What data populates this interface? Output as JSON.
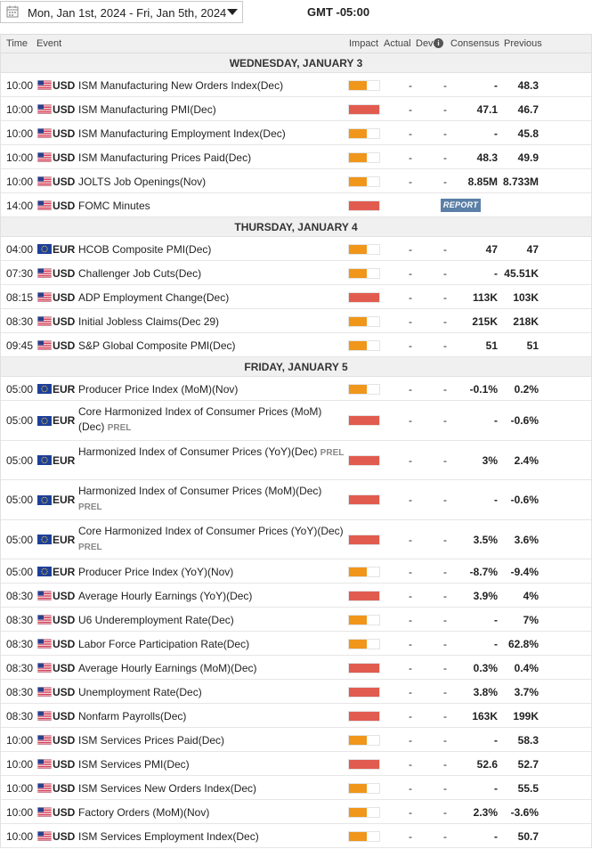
{
  "header": {
    "date_range": "Mon, Jan 1st, 2024 -  Fri, Jan 5th, 2024",
    "timezone": "GMT -05:00"
  },
  "columns": {
    "time": "Time",
    "event": "Event",
    "impact": "Impact",
    "actual": "Actual",
    "dev": "Dev",
    "consensus": "Consensus",
    "previous": "Previous"
  },
  "colors": {
    "impact_medium": "#ef961b",
    "impact_high": "#e15c4f",
    "report_button": "#5b7fa6"
  },
  "days": [
    {
      "label": "WEDNESDAY, JANUARY 3",
      "events": [
        {
          "time": "10:00",
          "currency": "USD",
          "flag": "us-flag-icon",
          "name": "ISM Manufacturing New Orders Index(Dec)",
          "prel": "",
          "impact": "medium",
          "actual": "-",
          "dev": "-",
          "consensus": "-",
          "previous": "48.3"
        },
        {
          "time": "10:00",
          "currency": "USD",
          "flag": "us-flag-icon",
          "name": "ISM Manufacturing PMI(Dec)",
          "prel": "",
          "impact": "high",
          "actual": "-",
          "dev": "-",
          "consensus": "47.1",
          "previous": "46.7"
        },
        {
          "time": "10:00",
          "currency": "USD",
          "flag": "us-flag-icon",
          "name": "ISM Manufacturing Employment Index(Dec)",
          "prel": "",
          "impact": "medium",
          "actual": "-",
          "dev": "-",
          "consensus": "-",
          "previous": "45.8"
        },
        {
          "time": "10:00",
          "currency": "USD",
          "flag": "us-flag-icon",
          "name": "ISM Manufacturing Prices Paid(Dec)",
          "prel": "",
          "impact": "medium",
          "actual": "-",
          "dev": "-",
          "consensus": "48.3",
          "previous": "49.9"
        },
        {
          "time": "10:00",
          "currency": "USD",
          "flag": "us-flag-icon",
          "name": "JOLTS Job Openings(Nov)",
          "prel": "",
          "impact": "medium",
          "actual": "-",
          "dev": "-",
          "consensus": "8.85M",
          "previous": "8.733M"
        },
        {
          "time": "14:00",
          "currency": "USD",
          "flag": "us-flag-icon",
          "name": "FOMC Minutes",
          "prel": "",
          "impact": "high",
          "actual": "",
          "dev": "",
          "consensus": "",
          "previous": "",
          "report": "REPORT"
        }
      ]
    },
    {
      "label": "THURSDAY, JANUARY 4",
      "events": [
        {
          "time": "04:00",
          "currency": "EUR",
          "flag": "eu-flag-icon",
          "name": "HCOB Composite PMI(Dec)",
          "prel": "",
          "impact": "medium",
          "actual": "-",
          "dev": "-",
          "consensus": "47",
          "previous": "47"
        },
        {
          "time": "07:30",
          "currency": "USD",
          "flag": "us-flag-icon",
          "name": "Challenger Job Cuts(Dec)",
          "prel": "",
          "impact": "medium",
          "actual": "-",
          "dev": "-",
          "consensus": "-",
          "previous": "45.51K"
        },
        {
          "time": "08:15",
          "currency": "USD",
          "flag": "us-flag-icon",
          "name": "ADP Employment Change(Dec)",
          "prel": "",
          "impact": "high",
          "actual": "-",
          "dev": "-",
          "consensus": "113K",
          "previous": "103K"
        },
        {
          "time": "08:30",
          "currency": "USD",
          "flag": "us-flag-icon",
          "name": "Initial Jobless Claims(Dec 29)",
          "prel": "",
          "impact": "medium",
          "actual": "-",
          "dev": "-",
          "consensus": "215K",
          "previous": "218K"
        },
        {
          "time": "09:45",
          "currency": "USD",
          "flag": "us-flag-icon",
          "name": "S&P Global Composite PMI(Dec)",
          "prel": "",
          "impact": "medium",
          "actual": "-",
          "dev": "-",
          "consensus": "51",
          "previous": "51"
        }
      ]
    },
    {
      "label": "FRIDAY, JANUARY 5",
      "events": [
        {
          "time": "05:00",
          "currency": "EUR",
          "flag": "eu-flag-icon",
          "name": "Producer Price Index (MoM)(Nov)",
          "prel": "",
          "impact": "medium",
          "actual": "-",
          "dev": "-",
          "consensus": "-0.1%",
          "previous": "0.2%"
        },
        {
          "time": "05:00",
          "currency": "EUR",
          "flag": "eu-flag-icon",
          "name": "Core Harmonized Index of Consumer Prices (MoM)(Dec)",
          "prel": "PREL",
          "impact": "high",
          "actual": "-",
          "dev": "-",
          "consensus": "-",
          "previous": "-0.6%"
        },
        {
          "time": "05:00",
          "currency": "EUR",
          "flag": "eu-flag-icon",
          "name": "Harmonized Index of Consumer Prices (YoY)(Dec)",
          "prel": "PREL",
          "impact": "high",
          "actual": "-",
          "dev": "-",
          "consensus": "3%",
          "previous": "2.4%"
        },
        {
          "time": "05:00",
          "currency": "EUR",
          "flag": "eu-flag-icon",
          "name": "Harmonized Index of Consumer Prices (MoM)(Dec)",
          "prel": "PREL",
          "impact": "high",
          "actual": "-",
          "dev": "-",
          "consensus": "-",
          "previous": "-0.6%"
        },
        {
          "time": "05:00",
          "currency": "EUR",
          "flag": "eu-flag-icon",
          "name": "Core Harmonized Index of Consumer Prices (YoY)(Dec)",
          "prel": "PREL",
          "impact": "high",
          "actual": "-",
          "dev": "-",
          "consensus": "3.5%",
          "previous": "3.6%"
        },
        {
          "time": "05:00",
          "currency": "EUR",
          "flag": "eu-flag-icon",
          "name": "Producer Price Index (YoY)(Nov)",
          "prel": "",
          "impact": "medium",
          "actual": "-",
          "dev": "-",
          "consensus": "-8.7%",
          "previous": "-9.4%"
        },
        {
          "time": "08:30",
          "currency": "USD",
          "flag": "us-flag-icon",
          "name": "Average Hourly Earnings (YoY)(Dec)",
          "prel": "",
          "impact": "high",
          "actual": "-",
          "dev": "-",
          "consensus": "3.9%",
          "previous": "4%"
        },
        {
          "time": "08:30",
          "currency": "USD",
          "flag": "us-flag-icon",
          "name": "U6 Underemployment Rate(Dec)",
          "prel": "",
          "impact": "medium",
          "actual": "-",
          "dev": "-",
          "consensus": "-",
          "previous": "7%"
        },
        {
          "time": "08:30",
          "currency": "USD",
          "flag": "us-flag-icon",
          "name": "Labor Force Participation Rate(Dec)",
          "prel": "",
          "impact": "medium",
          "actual": "-",
          "dev": "-",
          "consensus": "-",
          "previous": "62.8%"
        },
        {
          "time": "08:30",
          "currency": "USD",
          "flag": "us-flag-icon",
          "name": "Average Hourly Earnings (MoM)(Dec)",
          "prel": "",
          "impact": "high",
          "actual": "-",
          "dev": "-",
          "consensus": "0.3%",
          "previous": "0.4%"
        },
        {
          "time": "08:30",
          "currency": "USD",
          "flag": "us-flag-icon",
          "name": "Unemployment Rate(Dec)",
          "prel": "",
          "impact": "high",
          "actual": "-",
          "dev": "-",
          "consensus": "3.8%",
          "previous": "3.7%"
        },
        {
          "time": "08:30",
          "currency": "USD",
          "flag": "us-flag-icon",
          "name": "Nonfarm Payrolls(Dec)",
          "prel": "",
          "impact": "high",
          "actual": "-",
          "dev": "-",
          "consensus": "163K",
          "previous": "199K"
        },
        {
          "time": "10:00",
          "currency": "USD",
          "flag": "us-flag-icon",
          "name": "ISM Services Prices Paid(Dec)",
          "prel": "",
          "impact": "medium",
          "actual": "-",
          "dev": "-",
          "consensus": "-",
          "previous": "58.3"
        },
        {
          "time": "10:00",
          "currency": "USD",
          "flag": "us-flag-icon",
          "name": "ISM Services PMI(Dec)",
          "prel": "",
          "impact": "high",
          "actual": "-",
          "dev": "-",
          "consensus": "52.6",
          "previous": "52.7"
        },
        {
          "time": "10:00",
          "currency": "USD",
          "flag": "us-flag-icon",
          "name": "ISM Services New Orders Index(Dec)",
          "prel": "",
          "impact": "medium",
          "actual": "-",
          "dev": "-",
          "consensus": "-",
          "previous": "55.5"
        },
        {
          "time": "10:00",
          "currency": "USD",
          "flag": "us-flag-icon",
          "name": "Factory Orders (MoM)(Nov)",
          "prel": "",
          "impact": "medium",
          "actual": "-",
          "dev": "-",
          "consensus": "2.3%",
          "previous": "-3.6%"
        },
        {
          "time": "10:00",
          "currency": "USD",
          "flag": "us-flag-icon",
          "name": "ISM Services Employment Index(Dec)",
          "prel": "",
          "impact": "medium",
          "actual": "-",
          "dev": "-",
          "consensus": "-",
          "previous": "50.7"
        }
      ]
    }
  ]
}
